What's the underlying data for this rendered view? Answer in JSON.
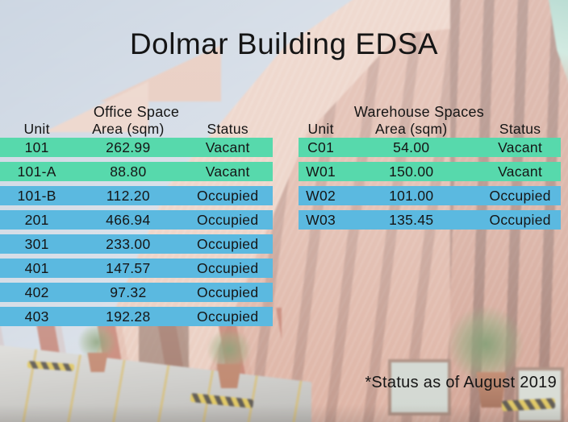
{
  "title": "Dolmar Building EDSA",
  "footnote": "*Status as of August 2019",
  "status_colors": {
    "Vacant": "#57d9ac",
    "Occupied": "#5bb9e0"
  },
  "background": {
    "description_icons": [
      "brick-building-photo",
      "sky",
      "driveway",
      "potted-plants"
    ]
  },
  "tables": [
    {
      "title": "Office Space",
      "columns": [
        "Unit",
        "Area (sqm)",
        "Status"
      ],
      "rows": [
        {
          "unit": "101",
          "area": "262.99",
          "status": "Vacant"
        },
        {
          "unit": "101-A",
          "area": "88.80",
          "status": "Vacant"
        },
        {
          "unit": "101-B",
          "area": "112.20",
          "status": "Occupied"
        },
        {
          "unit": "201",
          "area": "466.94",
          "status": "Occupied"
        },
        {
          "unit": "301",
          "area": "233.00",
          "status": "Occupied"
        },
        {
          "unit": "401",
          "area": "147.57",
          "status": "Occupied"
        },
        {
          "unit": "402",
          "area": "97.32",
          "status": "Occupied"
        },
        {
          "unit": "403",
          "area": "192.28",
          "status": "Occupied"
        }
      ]
    },
    {
      "title": "Warehouse Spaces",
      "columns": [
        "Unit",
        "Area (sqm)",
        "Status"
      ],
      "rows": [
        {
          "unit": "C01",
          "area": "54.00",
          "status": "Vacant"
        },
        {
          "unit": "W01",
          "area": "150.00",
          "status": "Vacant"
        },
        {
          "unit": "W02",
          "area": "101.00",
          "status": "Occupied"
        },
        {
          "unit": "W03",
          "area": "135.45",
          "status": "Occupied"
        }
      ]
    }
  ]
}
